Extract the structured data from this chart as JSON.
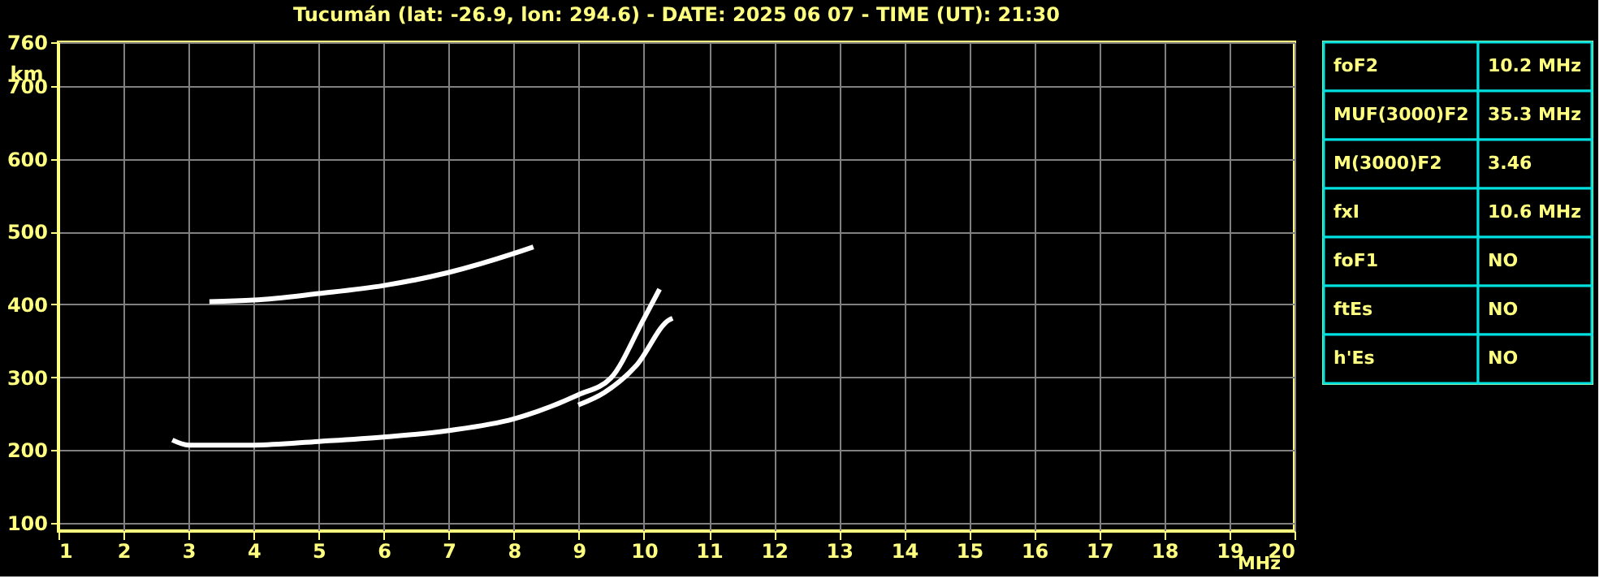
{
  "chart_data": [
    {
      "type": "line",
      "title": "Tucumán (lat: -26.9, lon: 294.6) - DATE: 2025 06 07 - TIME (UT): 21:30",
      "xlabel": "MHz",
      "ylabel": "km",
      "xlim": [
        1,
        20
      ],
      "ylim": [
        89,
        760
      ],
      "xticks": [
        1,
        2,
        3,
        4,
        5,
        6,
        7,
        8,
        9,
        10,
        11,
        12,
        13,
        14,
        15,
        16,
        17,
        18,
        19,
        20
      ],
      "yticks": [
        100,
        200,
        300,
        400,
        500,
        600,
        700,
        760
      ],
      "grid": true,
      "marker": "none",
      "line_style": "solid",
      "series": [
        {
          "color": "#ffffff",
          "x": [
            2.75,
            3,
            4,
            5,
            6,
            7,
            8,
            8.99,
            9.49,
            9.99,
            10.24
          ],
          "values": [
            214,
            207,
            207,
            212,
            218,
            227,
            243,
            276,
            299,
            379,
            421
          ]
        },
        {
          "color": "#ffffff",
          "x": [
            8.99,
            9.39,
            9.89,
            10.39,
            10.44
          ],
          "values": [
            262,
            279,
            317,
            379,
            381
          ]
        },
        {
          "color": "#ffffff",
          "x": [
            3.32,
            4,
            5,
            6,
            7,
            8,
            8.3
          ],
          "values": [
            404,
            406,
            415,
            426,
            444,
            470,
            479
          ]
        }
      ]
    },
    {
      "type": "other",
      "annotations": [
        "foF2",
        "10.2 MHz",
        "MUF(3000)F2",
        "35.3 MHz",
        "M(3000)F2",
        "3.46",
        "fxI",
        "10.6 MHz",
        "foF1",
        "NO",
        "ftEs",
        "NO",
        "h'Es",
        "NO"
      ]
    }
  ]
}
